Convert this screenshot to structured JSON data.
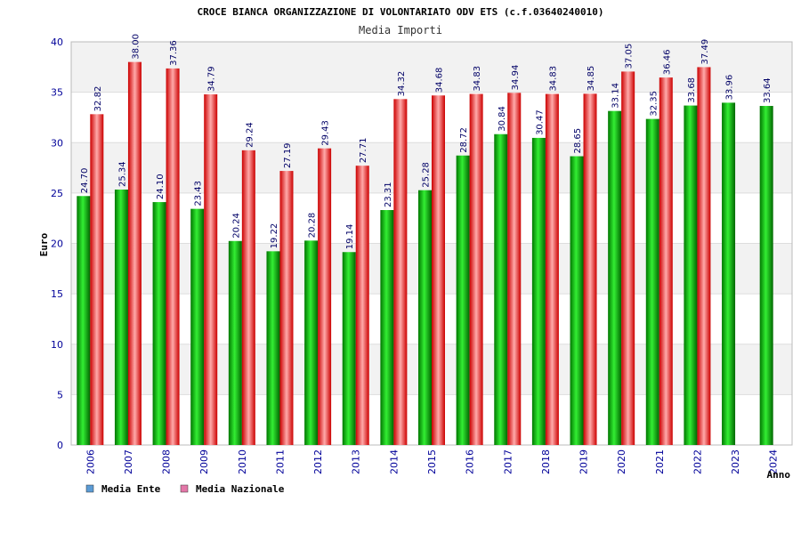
{
  "chart_data": {
    "type": "bar",
    "title": "CROCE BIANCA ORGANIZZAZIONE DI VOLONTARIATO ODV ETS (c.f.03640240010)",
    "subtitle": "Media Importi",
    "xlabel": "Anno",
    "ylabel": "Euro",
    "ylim": [
      0,
      40
    ],
    "yticks": [
      0,
      5,
      10,
      15,
      20,
      25,
      30,
      35,
      40
    ],
    "grid": true,
    "legend_position": "bottom-left",
    "categories": [
      "2006",
      "2007",
      "2008",
      "2009",
      "2010",
      "2011",
      "2012",
      "2013",
      "2014",
      "2015",
      "2016",
      "2017",
      "2018",
      "2019",
      "2020",
      "2021",
      "2022",
      "2023",
      "2024"
    ],
    "series": [
      {
        "name": "Media Ente",
        "color": "#00aa00",
        "legend_color": "#5b9bd5",
        "values": [
          24.7,
          25.34,
          24.1,
          23.43,
          20.24,
          19.22,
          20.28,
          19.14,
          23.31,
          25.28,
          28.72,
          30.84,
          30.47,
          28.65,
          33.14,
          32.35,
          33.68,
          33.96,
          33.64
        ],
        "labels": [
          "24.70",
          "25.34",
          "24.10",
          "23.43",
          "20.24",
          "19.22",
          "20.28",
          "19.14",
          "23.31",
          "25.28",
          "28.72",
          "30.84",
          "30.47",
          "28.65",
          "33.14",
          "32.35",
          "33.68",
          "33.96",
          "33.64"
        ]
      },
      {
        "name": "Media Nazionale",
        "color": "#dd1111",
        "legend_color": "#e377a8",
        "values": [
          32.82,
          38.0,
          37.36,
          34.79,
          29.24,
          27.19,
          29.43,
          27.71,
          34.32,
          34.68,
          34.83,
          34.94,
          34.83,
          34.85,
          37.05,
          36.46,
          37.49,
          null,
          null
        ],
        "labels": [
          "32.82",
          "38.00",
          "37.36",
          "34.79",
          "29.24",
          "27.19",
          "29.43",
          "27.71",
          "34.32",
          "34.68",
          "34.83",
          "34.94",
          "34.83",
          "34.85",
          "37.05",
          "36.46",
          "37.49",
          "",
          ""
        ]
      }
    ]
  }
}
